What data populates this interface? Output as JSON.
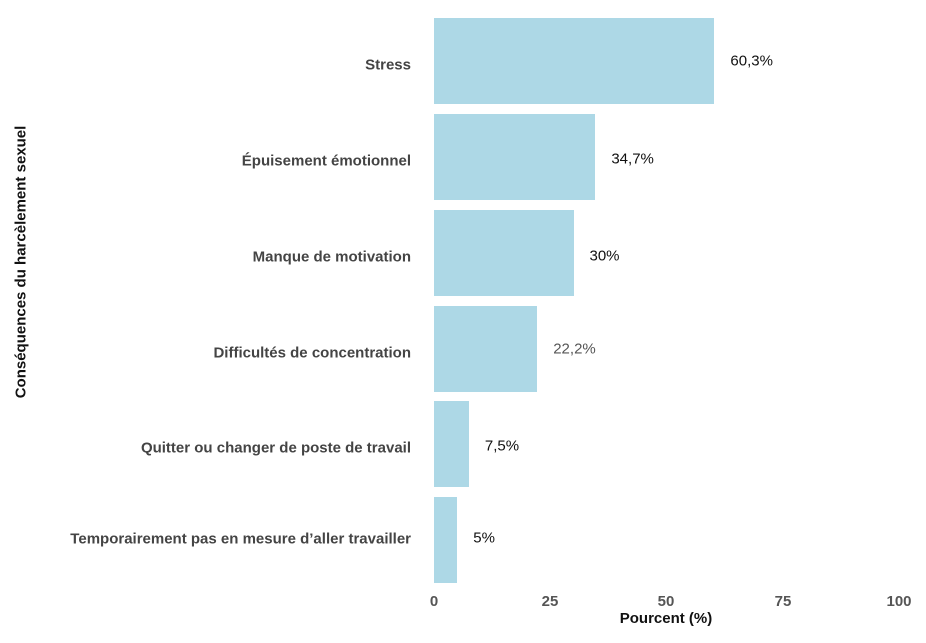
{
  "chart_data": {
    "type": "bar",
    "orientation": "horizontal",
    "title": "",
    "xlabel": "Pourcent (%)",
    "ylabel": "Conséquences du harcèlement sexuel",
    "xlim": [
      0,
      100
    ],
    "xticks": [
      "0",
      "25",
      "50",
      "75",
      "100"
    ],
    "grid": false,
    "legend": null,
    "color": "#add8e6",
    "categories": [
      "Stress",
      "Épuisement émotionnel",
      "Manque de motivation",
      "Difficultés de concentration",
      "Quitter ou changer de poste de travail",
      "Temporairement pas en mesure d’aller travailler"
    ],
    "values": [
      60.3,
      34.7,
      30,
      22.2,
      7.5,
      5
    ],
    "labels": [
      "60,3%",
      "34,7%",
      "30%",
      "22,2%",
      "7,5%",
      "5%"
    ]
  }
}
